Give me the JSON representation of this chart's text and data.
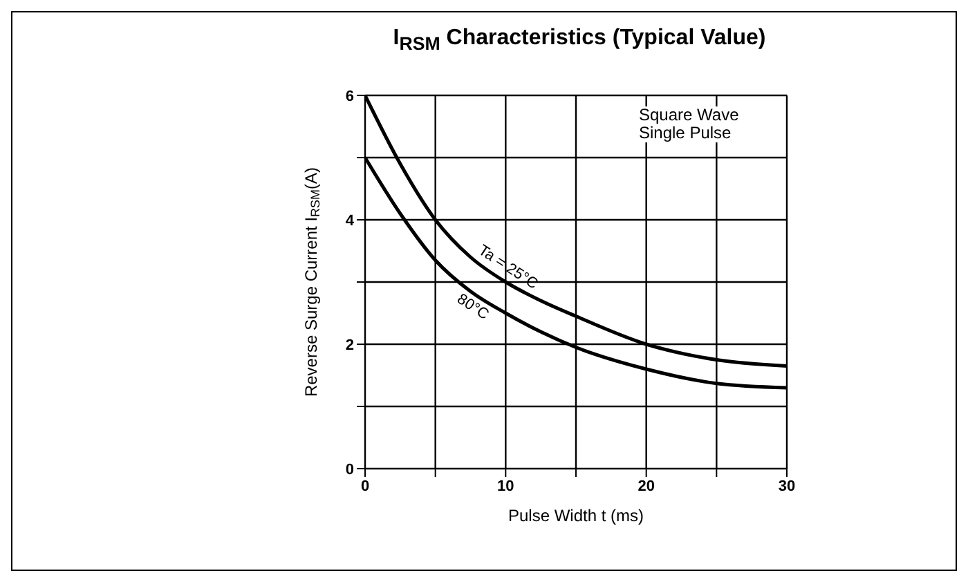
{
  "chart_data": {
    "type": "line",
    "title": "I$_{RSM}$ Characteristics (Typical Value)",
    "xlabel": "Pulse Width t (ms)",
    "ylabel": "Reverse Surge Current I$_{RSM}$(A)",
    "x": [
      0,
      2.5,
      5,
      7.5,
      10,
      12.5,
      15,
      20,
      25,
      30
    ],
    "series": [
      {
        "name": "Ta = 25°C",
        "color": "#000000",
        "values": [
          6,
          4.9,
          4.0,
          3.4,
          3.0,
          2.7,
          2.45,
          2.0,
          1.75,
          1.65
        ]
      },
      {
        "name": "80°C",
        "color": "#000000",
        "values": [
          5,
          4.1,
          3.35,
          2.85,
          2.5,
          2.2,
          1.95,
          1.6,
          1.37,
          1.3
        ]
      }
    ],
    "xlim": [
      0,
      30
    ],
    "xticks": [
      0,
      {
        "value": 5,
        "label": null
      },
      10,
      {
        "value": 15,
        "label": null
      },
      20,
      {
        "value": 25,
        "label": null
      },
      30
    ],
    "ylim": [
      0,
      6
    ],
    "yticks": [
      0,
      {
        "value": 1,
        "label": null
      },
      2,
      {
        "value": 3,
        "label": null
      },
      4,
      {
        "value": 5,
        "label": null
      },
      6
    ],
    "annotations": [
      "Square Wave\nSingle Pulse"
    ],
    "grid": true,
    "legend": false,
    "marker": "none",
    "line_style": "solid"
  }
}
